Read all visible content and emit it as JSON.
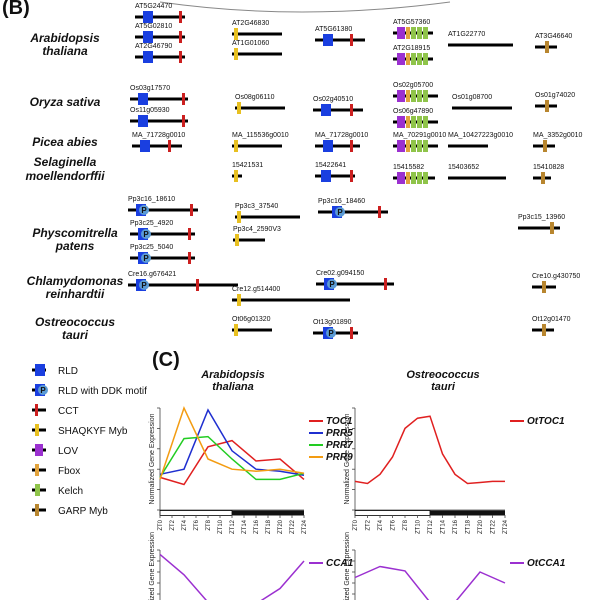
{
  "panel_b": {
    "label": "(B)",
    "species": [
      {
        "l1": "Arabidopsis",
        "l2": "thaliana"
      },
      {
        "l1": "Oryza sativa",
        "l2": ""
      },
      {
        "l1": "Picea abies",
        "l2": ""
      },
      {
        "l1": "Selaginella",
        "l2": "moellendorffii"
      },
      {
        "l1": "Physcomitrella",
        "l2": "patens"
      },
      {
        "l1": "Chlamydomonas",
        "l2": "reinhardtii"
      },
      {
        "l1": "Ostreococcus",
        "l2": "tauri"
      }
    ],
    "genes": [
      {
        "label": "AT5G24470",
        "parts": [
          "RLD",
          "CCT"
        ]
      },
      {
        "label": "AT5G02810",
        "parts": [
          "RLD",
          "CCT"
        ]
      },
      {
        "label": "AT2G46790",
        "parts": [
          "RLD",
          "CCT"
        ]
      },
      {
        "label": "AT2G46830",
        "parts": [
          "SHAQKYF Myb"
        ]
      },
      {
        "label": "AT1G01060",
        "parts": [
          "SHAQKYF Myb"
        ]
      },
      {
        "label": "AT5G61380",
        "parts": [
          "RLD",
          "CCT"
        ]
      },
      {
        "label": "AT5G57360",
        "parts": [
          "LOV",
          "Fbox",
          "Kelch",
          "Kelch",
          "Kelch"
        ]
      },
      {
        "label": "AT2G18915",
        "parts": [
          "LOV",
          "Fbox",
          "Kelch",
          "Kelch",
          "Kelch"
        ]
      },
      {
        "label": "AT1G22770",
        "parts": []
      },
      {
        "label": "AT3G46640",
        "parts": [
          "GARP Myb"
        ]
      },
      {
        "label": "Os03g17570",
        "parts": [
          "RLD",
          "CCT"
        ]
      },
      {
        "label": "Os11g05930",
        "parts": [
          "RLD",
          "CCT"
        ]
      },
      {
        "label": "Os08g06110",
        "parts": [
          "SHAQKYF Myb"
        ]
      },
      {
        "label": "Os02g40510",
        "parts": [
          "RLD",
          "CCT"
        ]
      },
      {
        "label": "Os02g05700",
        "parts": [
          "LOV",
          "Fbox",
          "Kelch",
          "Kelch",
          "Kelch"
        ]
      },
      {
        "label": "Os06g47890",
        "parts": [
          "LOV",
          "Fbox",
          "Kelch",
          "Kelch",
          "Kelch"
        ]
      },
      {
        "label": "Os01g08700",
        "parts": []
      },
      {
        "label": "Os01g74020",
        "parts": [
          "GARP Myb"
        ]
      },
      {
        "label": "MA_71728g0010",
        "parts": [
          "RLD",
          "CCT"
        ]
      },
      {
        "label": "MA_115536g0010",
        "parts": [
          "SHAQKYF Myb"
        ]
      },
      {
        "label": "MA_71728g0010",
        "parts": [
          "RLD",
          "CCT"
        ]
      },
      {
        "label": "MA_70291g0010",
        "parts": [
          "LOV",
          "Fbox",
          "Kelch",
          "Kelch",
          "Kelch"
        ]
      },
      {
        "label": "MA_10427223g0010",
        "parts": []
      },
      {
        "label": "MA_3352g0010",
        "parts": [
          "GARP Myb"
        ]
      },
      {
        "label": "15421531",
        "parts": [
          "SHAQKYF Myb"
        ]
      },
      {
        "label": "15422641",
        "parts": [
          "RLD",
          "CCT"
        ]
      },
      {
        "label": "15415582",
        "parts": [
          "LOV",
          "Fbox",
          "Kelch",
          "Kelch",
          "Kelch"
        ]
      },
      {
        "label": "15403652",
        "parts": []
      },
      {
        "label": "15410828",
        "parts": [
          "GARP Myb"
        ]
      },
      {
        "label": "Pp3c16_18610",
        "parts": [
          "RLD with DDK motif",
          "CCT"
        ]
      },
      {
        "label": "Pp3c25_4920",
        "parts": [
          "RLD with DDK motif",
          "CCT"
        ]
      },
      {
        "label": "Pp3c25_5040",
        "parts": [
          "RLD with DDK motif",
          "CCT"
        ]
      },
      {
        "label": "Pp3c3_37540",
        "parts": [
          "SHAQKYF Myb"
        ]
      },
      {
        "label": "Pp3c4_2590V3",
        "parts": [
          "SHAQKYF Myb"
        ]
      },
      {
        "label": "Pp3c16_18460",
        "parts": [
          "RLD with DDK motif",
          "CCT"
        ]
      },
      {
        "label": "Pp3c15_13960",
        "parts": [
          "GARP Myb"
        ]
      },
      {
        "label": "Cre16.g676421",
        "parts": [
          "RLD with DDK motif",
          "CCT"
        ]
      },
      {
        "label": "Cre12.g514400",
        "parts": [
          "SHAQKYF Myb"
        ]
      },
      {
        "label": "Cre02.g094150",
        "parts": [
          "RLD with DDK motif",
          "CCT"
        ]
      },
      {
        "label": "Cre10.g430750",
        "parts": [
          "GARP Myb"
        ]
      },
      {
        "label": "Ot06g01320",
        "parts": [
          "SHAQKYF Myb"
        ]
      },
      {
        "label": "Ot13g01890",
        "parts": [
          "RLD with DDK motif",
          "CCT"
        ]
      },
      {
        "label": "Ot12g01470",
        "parts": [
          "GARP Myb"
        ]
      }
    ]
  },
  "legend": [
    {
      "label": "RLD",
      "color": "#1a3fe0"
    },
    {
      "label": "RLD with DDK motif",
      "color": "#1a3fe0",
      "motif": "P",
      "motif_color": "#5b9bd5"
    },
    {
      "label": "CCT",
      "color": "#cc1f1f"
    },
    {
      "label": "SHAQKYF Myb",
      "color": "#e8c020"
    },
    {
      "label": "LOV",
      "color": "#9b30d0"
    },
    {
      "label": "Fbox",
      "color": "#e2a33c"
    },
    {
      "label": "Kelch",
      "color": "#8fc44a"
    },
    {
      "label": "GARP Myb",
      "color": "#b8862f"
    }
  ],
  "panel_c": {
    "label": "(C)",
    "ylabel": "Normalized Gene Expression",
    "x_ticks": [
      "ZT0",
      "ZT2",
      "ZT4",
      "ZT6",
      "ZT8",
      "ZT10",
      "ZT12",
      "ZT14",
      "ZT16",
      "ZT18",
      "ZT20",
      "ZT22",
      "ZT24"
    ],
    "dark_from": "ZT12"
  },
  "chart_data": [
    {
      "type": "line",
      "title_1": "Arabidopsis",
      "title_2": "thaliana",
      "ylabel": "Normalized Gene Expression",
      "x": [
        0,
        4,
        8,
        12,
        16,
        20,
        24
      ],
      "series": [
        {
          "name": "TOC1",
          "color": "#e02020",
          "values": [
            0.32,
            0.25,
            0.62,
            0.68,
            0.48,
            0.5,
            0.3
          ]
        },
        {
          "name": "PRR5",
          "color": "#1f2fd0",
          "values": [
            0.35,
            0.4,
            0.98,
            0.58,
            0.4,
            0.38,
            0.34
          ]
        },
        {
          "name": "PRR7",
          "color": "#22cc22",
          "values": [
            0.32,
            0.7,
            0.72,
            0.5,
            0.3,
            0.3,
            0.36
          ]
        },
        {
          "name": "PRR9",
          "color": "#f39c12",
          "values": [
            0.3,
            1.0,
            0.5,
            0.4,
            0.38,
            0.4,
            0.36
          ]
        }
      ]
    },
    {
      "type": "line",
      "title_1": "Ostreococcus",
      "title_2": "tauri",
      "ylabel": "Normalized Gene Expression",
      "x": [
        0,
        2,
        4,
        6,
        8,
        10,
        12,
        14,
        16,
        18,
        20,
        22,
        24
      ],
      "series": [
        {
          "name": "OtTOC1",
          "color": "#e02020",
          "values": [
            0.28,
            0.26,
            0.35,
            0.52,
            0.8,
            0.9,
            0.92,
            0.55,
            0.35,
            0.26,
            0.27,
            0.28,
            0.28
          ]
        }
      ]
    },
    {
      "type": "line",
      "ylabel": "Normalized Gene Expression",
      "x": [
        0,
        4,
        8,
        12,
        16,
        20,
        24
      ],
      "series": [
        {
          "name": "CCA1",
          "color": "#9b30d0",
          "values": [
            0.92,
            0.55,
            0.05,
            0.02,
            0.02,
            0.3,
            0.8
          ]
        }
      ]
    },
    {
      "type": "line",
      "ylabel": "Normalized Gene Expression",
      "x": [
        0,
        4,
        8,
        12,
        16,
        20,
        24
      ],
      "series": [
        {
          "name": "OtCCA1",
          "color": "#9b30d0",
          "values": [
            0.5,
            0.7,
            0.62,
            0.05,
            0.05,
            0.6,
            0.4
          ]
        }
      ]
    }
  ]
}
